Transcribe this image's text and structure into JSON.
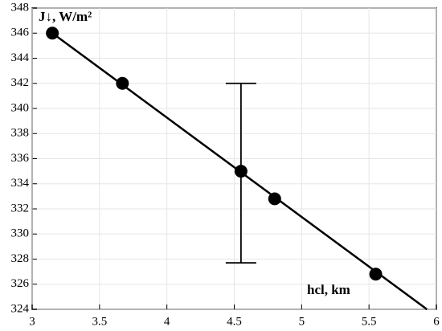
{
  "chart_data": {
    "type": "scatter",
    "y_label": "J↓, W/m²",
    "x_label": "hcl, km",
    "series": [
      {
        "color": "#000000",
        "x": [
          3.15,
          3.67,
          4.55,
          4.8,
          5.55
        ],
        "values": [
          346,
          342,
          335,
          332.8,
          326.8
        ]
      },
      {
        "color": "#000000",
        "style": "line",
        "x": [
          3.15,
          5.93
        ],
        "values": [
          346,
          324
        ]
      }
    ],
    "error_bars": [
      {
        "x": 4.55,
        "low": 327.7,
        "high": 342
      }
    ],
    "xlim": [
      3,
      6
    ],
    "xticks": [
      3,
      3.5,
      4,
      4.5,
      5,
      5.5,
      6
    ],
    "ylim": [
      324,
      348
    ],
    "yticks": [
      324,
      326,
      328,
      330,
      332,
      334,
      336,
      338,
      340,
      342,
      344,
      346,
      348
    ],
    "grid": true
  }
}
